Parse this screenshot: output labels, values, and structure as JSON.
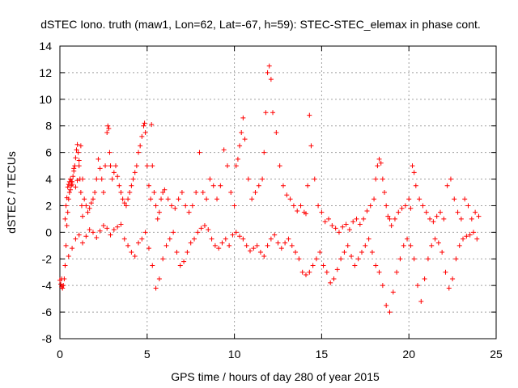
{
  "chart_data": {
    "type": "scatter",
    "title": "dSTEC Iono. truth (maw1, Lon=62, Lat=-67, h=59): STEC-STEC_elemax in phase cont.",
    "xlabel": "GPS time / hours of day 280 of year 2015",
    "ylabel": "dSTEC  / TECUs",
    "xlim": [
      0,
      25
    ],
    "ylim": [
      -8,
      14
    ],
    "xticks": [
      0,
      5,
      10,
      15,
      20,
      25
    ],
    "yticks": [
      -8,
      -6,
      -4,
      -2,
      0,
      2,
      4,
      6,
      8,
      10,
      12,
      14
    ],
    "grid": true,
    "marker": "+",
    "color": "#ff0000",
    "series": [
      {
        "x": [
          0.0,
          0.05,
          0.1,
          0.15,
          0.2,
          0.25,
          0.3,
          0.35,
          0.4,
          0.45,
          0.5,
          0.55,
          0.6,
          0.65,
          0.7,
          0.75,
          0.8,
          0.85,
          0.9,
          0.95,
          1.0,
          1.05,
          1.1,
          1.15,
          1.2,
          1.25,
          1.3,
          0.3,
          0.35,
          0.4,
          0.45,
          0.5,
          0.55,
          0.6,
          0.65,
          0.7,
          0.8,
          0.9,
          1.0,
          1.1,
          1.2,
          1.3,
          1.4,
          1.5,
          1.6,
          1.7,
          1.8,
          1.9,
          2.0,
          2.1,
          2.2,
          2.3,
          2.4,
          2.5,
          2.6,
          2.7,
          2.75,
          2.8,
          2.85,
          2.9,
          3.0,
          3.1,
          3.2,
          3.3,
          3.4,
          3.5,
          3.6,
          3.7,
          3.8,
          3.9,
          4.0,
          4.1,
          4.2,
          4.3,
          4.4,
          4.5,
          4.6,
          4.7,
          4.8,
          4.85,
          4.9,
          5.0,
          5.1,
          5.2,
          5.25,
          5.3,
          5.4,
          5.5,
          5.6,
          5.7,
          5.8,
          5.9,
          6.0,
          6.2,
          6.4,
          6.6,
          6.8,
          7.0,
          7.2,
          7.4,
          7.6,
          7.8,
          8.0,
          8.2,
          8.4,
          8.6,
          8.8,
          9.0,
          9.2,
          9.4,
          9.6,
          9.8,
          10.0,
          10.1,
          10.2,
          10.3,
          10.4,
          10.5,
          10.6,
          10.8,
          11.0,
          11.2,
          11.4,
          11.6,
          11.7,
          11.8,
          11.9,
          12.0,
          12.1,
          12.2,
          12.4,
          12.6,
          12.8,
          13.0,
          13.2,
          13.4,
          13.6,
          13.8,
          14.0,
          14.1,
          14.2,
          14.3,
          14.4,
          14.6,
          14.8,
          15.0,
          15.2,
          15.4,
          15.6,
          15.8,
          16.0,
          16.2,
          16.4,
          16.6,
          16.8,
          17.0,
          17.2,
          17.4,
          17.6,
          17.8,
          18.0,
          18.1,
          18.2,
          18.3,
          18.4,
          18.5,
          18.6,
          18.7,
          18.8,
          18.9,
          19.0,
          19.2,
          19.4,
          19.6,
          19.8,
          20.0,
          20.1,
          20.2,
          20.3,
          20.4,
          20.6,
          20.8,
          21.0,
          21.2,
          21.4,
          21.6,
          21.8,
          22.0,
          22.2,
          22.4,
          22.6,
          22.8,
          23.0,
          23.2,
          23.4,
          23.6,
          23.8,
          24.0,
          0.1,
          0.3,
          0.5,
          0.7,
          0.9,
          1.1,
          1.3,
          1.5,
          1.7,
          1.9,
          2.1,
          2.3,
          2.5,
          2.7,
          2.9,
          3.1,
          3.3,
          3.5,
          3.7,
          3.9,
          4.1,
          4.3,
          4.5,
          4.7,
          4.9,
          5.1,
          5.3,
          5.5,
          5.7,
          5.9,
          6.1,
          6.3,
          6.5,
          6.7,
          6.9,
          7.1,
          7.3,
          7.5,
          7.7,
          7.9,
          8.1,
          8.3,
          8.5,
          8.7,
          8.9,
          9.1,
          9.3,
          9.5,
          9.7,
          9.9,
          10.1,
          10.3,
          10.5,
          10.7,
          10.9,
          11.1,
          11.3,
          11.5,
          11.7,
          11.9,
          12.1,
          12.3,
          12.5,
          12.7,
          12.9,
          13.1,
          13.3,
          13.5,
          13.7,
          13.9,
          14.1,
          14.3,
          14.5,
          14.7,
          14.9,
          15.1,
          15.3,
          15.5,
          15.7,
          15.9,
          16.1,
          16.3,
          16.5,
          16.7,
          16.9,
          17.1,
          17.3,
          17.5,
          17.7,
          17.9,
          18.1,
          18.3,
          18.5,
          18.7,
          18.9,
          19.1,
          19.3,
          19.5,
          19.7,
          19.9,
          20.1,
          20.3,
          20.5,
          20.7,
          20.9,
          21.1,
          21.3,
          21.5,
          21.7,
          21.9,
          22.1,
          22.3,
          22.5,
          22.7,
          22.9,
          23.1,
          23.3,
          23.5,
          23.7,
          23.9
        ],
        "y": [
          -3.6,
          -3.9,
          -4.1,
          -4.2,
          -4.0,
          -3.5,
          -2.5,
          -1.0,
          0.5,
          1.5,
          2.5,
          3.0,
          3.2,
          3.5,
          3.8,
          4.2,
          4.6,
          5.0,
          5.6,
          6.2,
          6.6,
          6.0,
          5.0,
          4.0,
          3.0,
          2.0,
          1.2,
          1.0,
          2.0,
          2.6,
          3.4,
          3.6,
          3.8,
          4.0,
          3.8,
          3.6,
          4.8,
          3.4,
          3.9,
          5.4,
          6.5,
          4.0,
          2.5,
          2.0,
          1.5,
          1.8,
          2.2,
          2.5,
          3.0,
          4.0,
          5.5,
          4.8,
          4.0,
          3.0,
          5.0,
          7.5,
          8.0,
          7.8,
          6.0,
          5.0,
          4.0,
          4.5,
          5.0,
          4.2,
          3.5,
          3.0,
          2.5,
          2.2,
          2.0,
          2.5,
          3.0,
          3.5,
          4.0,
          4.5,
          5.0,
          6.0,
          6.5,
          7.2,
          8.0,
          8.2,
          7.5,
          5.0,
          3.5,
          2.5,
          8.1,
          5.0,
          3.0,
          2.0,
          1.0,
          1.5,
          2.5,
          3.0,
          3.2,
          2.5,
          2.0,
          1.8,
          2.5,
          3.0,
          2.0,
          1.5,
          2.0,
          3.0,
          6.0,
          3.0,
          2.5,
          4.0,
          3.5,
          2.5,
          3.5,
          6.2,
          5.0,
          3.0,
          2.0,
          5.0,
          5.5,
          6.5,
          7.5,
          8.6,
          7.0,
          4.0,
          2.5,
          3.0,
          3.5,
          4.0,
          6.0,
          9.0,
          12.0,
          12.5,
          11.5,
          9.0,
          7.5,
          5.0,
          3.5,
          2.8,
          2.5,
          2.0,
          1.6,
          2.0,
          1.5,
          1.4,
          3.5,
          8.8,
          6.5,
          4.0,
          2.0,
          1.5,
          0.8,
          1.0,
          0.5,
          0.3,
          0.0,
          0.4,
          0.6,
          0.2,
          0.8,
          1.0,
          0.6,
          1.0,
          1.6,
          2.0,
          2.5,
          4.0,
          5.0,
          5.5,
          5.2,
          4.0,
          3.0,
          2.0,
          1.2,
          1.0,
          0.5,
          1.0,
          1.5,
          1.8,
          2.0,
          2.5,
          1.8,
          5.0,
          4.5,
          3.5,
          2.5,
          2.0,
          1.5,
          1.0,
          0.8,
          1.2,
          1.5,
          1.0,
          3.5,
          4.0,
          2.5,
          1.5,
          1.0,
          2.5,
          2.0,
          1.0,
          1.5,
          1.2,
          -3.5,
          -2.5,
          -1.8,
          -1.2,
          -0.5,
          -0.2,
          -0.8,
          -0.3,
          0.2,
          0.0,
          -0.4,
          0.1,
          0.5,
          0.3,
          -0.2,
          0.2,
          0.4,
          0.6,
          -0.5,
          -1.0,
          -1.5,
          -1.8,
          -0.8,
          -0.5,
          0.0,
          -1.2,
          -2.5,
          -4.2,
          -3.5,
          -2.0,
          -1.0,
          -0.5,
          0.0,
          -1.5,
          -2.5,
          -2.2,
          -1.5,
          -0.8,
          -0.5,
          0.0,
          0.3,
          0.5,
          0.2,
          -0.5,
          -1.0,
          -1.2,
          -0.8,
          -0.5,
          -1.0,
          -0.2,
          0.0,
          -0.3,
          -0.5,
          -1.0,
          -1.4,
          -1.2,
          -1.0,
          -1.5,
          -1.8,
          -1.0,
          -0.5,
          -0.2,
          -0.8,
          -1.2,
          -0.8,
          -0.5,
          -1.0,
          -1.5,
          -2.0,
          -3.0,
          -3.2,
          -3.0,
          -2.5,
          -2.0,
          -1.5,
          -2.5,
          -3.0,
          -3.8,
          -3.5,
          -2.8,
          -2.0,
          -1.5,
          -1.0,
          -1.8,
          -2.5,
          -2.0,
          -1.5,
          -1.0,
          -0.5,
          -1.5,
          -2.5,
          -3.0,
          -4.0,
          -5.5,
          -6.0,
          -4.5,
          -3.0,
          -2.0,
          -1.0,
          -0.5,
          -1.0,
          -2.0,
          -4.0,
          -5.2,
          -3.5,
          -2.0,
          -1.0,
          -0.5,
          -0.8,
          -1.5,
          -3.0,
          -4.2,
          -3.5,
          -2.0,
          -1.0,
          -0.5,
          -0.3,
          -0.2,
          0.0,
          -0.5
        ]
      }
    ]
  }
}
